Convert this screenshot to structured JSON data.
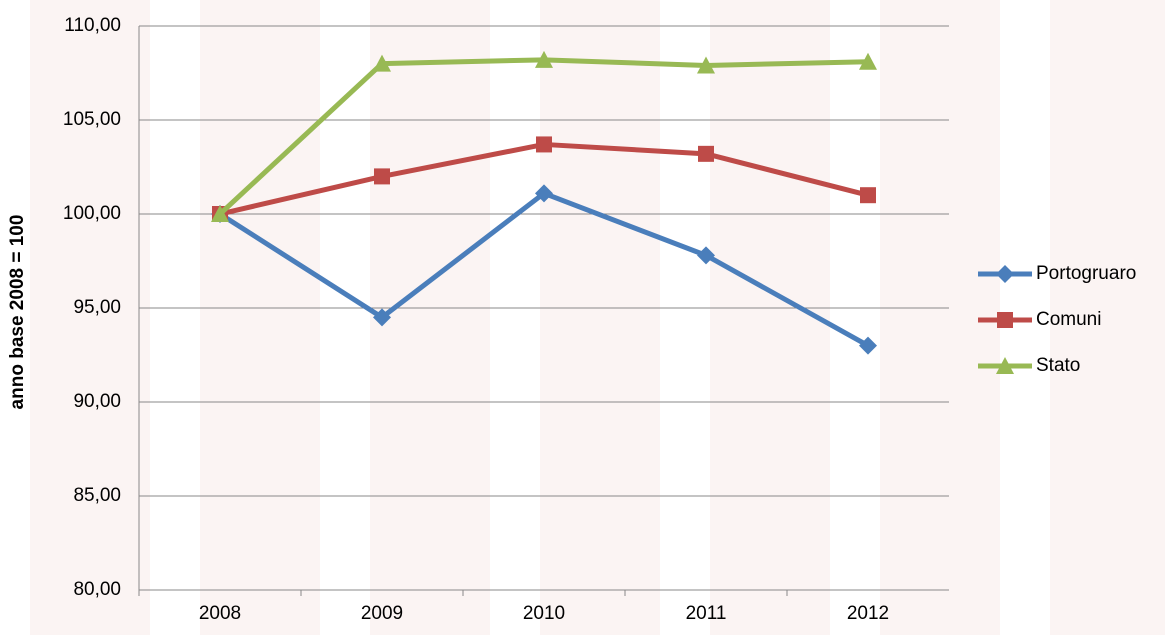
{
  "chart_data": {
    "type": "line",
    "y_label": "anno base 2008 = 100",
    "categories": [
      "2008",
      "2009",
      "2010",
      "2011",
      "2012"
    ],
    "series": [
      {
        "name": "Portogruaro",
        "color": "#4a7ebb",
        "marker": "diamond",
        "values": [
          100,
          94.5,
          101.1,
          97.8,
          93.0
        ]
      },
      {
        "name": "Comuni",
        "color": "#be4b48",
        "marker": "square",
        "values": [
          100,
          102.0,
          103.7,
          103.2,
          101.0
        ]
      },
      {
        "name": "Stato",
        "color": "#98b954",
        "marker": "triangle",
        "values": [
          100,
          108.0,
          108.2,
          107.9,
          108.1
        ]
      }
    ],
    "ylim": [
      80,
      110
    ],
    "yticks": [
      {
        "value": 80,
        "label": "80,00"
      },
      {
        "value": 85,
        "label": "85,00"
      },
      {
        "value": 90,
        "label": "90,00"
      },
      {
        "value": 95,
        "label": "95,00"
      },
      {
        "value": 100,
        "label": "100,00"
      },
      {
        "value": 105,
        "label": "105,00"
      },
      {
        "value": 110,
        "label": "110,00"
      }
    ],
    "grid": true,
    "legend": "right"
  }
}
